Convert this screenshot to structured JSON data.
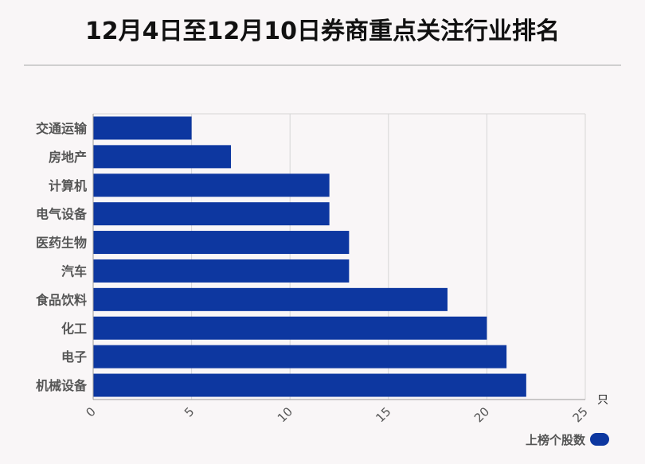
{
  "title": "12月4日至12月10日券商重点关注行业排名",
  "colors": {
    "bar": "#0d37a0",
    "grid": "#d6d6d6",
    "axis": "#9a9a9a",
    "label": "#555555"
  },
  "chart_data": {
    "type": "bar",
    "orientation": "horizontal",
    "title": "12月4日至12月10日券商重点关注行业排名",
    "categories": [
      "交通运输",
      "房地产",
      "计算机",
      "电气设备",
      "医药生物",
      "汽车",
      "食品饮料",
      "化工",
      "电子",
      "机械设备"
    ],
    "series": [
      {
        "name": "上榜个股数",
        "values": [
          5,
          7,
          12,
          12,
          13,
          13,
          18,
          20,
          21,
          22
        ]
      }
    ],
    "xlim": [
      0,
      25
    ],
    "xticks": [
      "0",
      "5",
      "10",
      "15",
      "20",
      "25"
    ],
    "xlabel": "只",
    "ylabel": "",
    "grid": true,
    "legend": "bottom-right"
  }
}
